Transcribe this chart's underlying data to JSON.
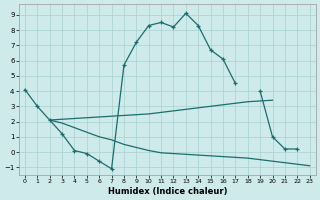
{
  "xlabel": "Humidex (Indice chaleur)",
  "background_color": "#ceeaea",
  "grid_color": "#aacfcf",
  "line_color": "#1a6e6e",
  "xlim": [
    -0.5,
    23.5
  ],
  "ylim": [
    -1.5,
    9.7
  ],
  "yticks": [
    -1,
    0,
    1,
    2,
    3,
    4,
    5,
    6,
    7,
    8,
    9
  ],
  "xticks": [
    0,
    1,
    2,
    3,
    4,
    5,
    6,
    7,
    8,
    9,
    10,
    11,
    12,
    13,
    14,
    15,
    16,
    17,
    18,
    19,
    20,
    21,
    22,
    23
  ],
  "curve1_segments": [
    {
      "x": [
        0,
        1,
        2,
        3,
        4,
        5,
        6,
        7,
        8,
        9,
        10,
        11,
        12,
        13,
        14,
        15,
        16,
        17
      ],
      "y": [
        4.1,
        3.0,
        2.1,
        1.2,
        0.1,
        -0.1,
        -0.6,
        -1.1,
        5.7,
        7.2,
        8.3,
        8.5,
        8.2,
        9.1,
        8.3,
        6.7,
        6.1,
        4.5
      ]
    },
    {
      "x": [
        19,
        20,
        21,
        22
      ],
      "y": [
        4.0,
        1.0,
        0.2,
        0.2
      ]
    }
  ],
  "curve2": {
    "x": [
      2,
      4,
      6,
      8,
      10,
      12,
      14,
      16,
      18,
      20
    ],
    "y": [
      2.1,
      2.2,
      2.3,
      2.4,
      2.5,
      2.7,
      2.9,
      3.1,
      3.3,
      3.4
    ]
  },
  "curve3": {
    "x": [
      2,
      3,
      4,
      5,
      6,
      7,
      8,
      9,
      10,
      11,
      12,
      13,
      14,
      15,
      16,
      17,
      18,
      19,
      20,
      21,
      22,
      23
    ],
    "y": [
      2.1,
      1.9,
      1.6,
      1.3,
      1.0,
      0.8,
      0.5,
      0.3,
      0.1,
      -0.05,
      -0.1,
      -0.15,
      -0.2,
      -0.25,
      -0.3,
      -0.35,
      -0.4,
      -0.5,
      -0.6,
      -0.7,
      -0.8,
      -0.9
    ]
  }
}
